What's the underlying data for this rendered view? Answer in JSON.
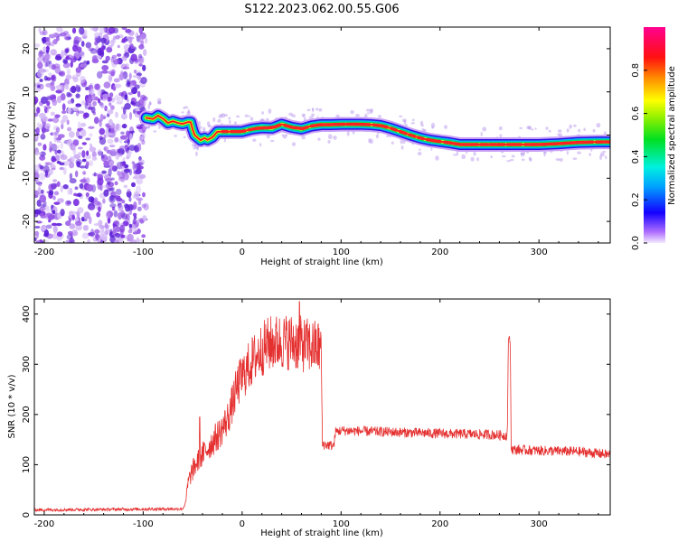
{
  "title": "S122.2023.062.00.55.G06",
  "colors": {
    "snr_line": "#e53030",
    "frame": "#000000",
    "dot_purple": "#7a2de0"
  },
  "chart_data": [
    {
      "type": "heatmap",
      "name": "spectrogram",
      "xlabel": "Height of straight line (km)",
      "ylabel": "Frequency (Hz)",
      "xlim": [
        -210,
        372
      ],
      "ylim": [
        -25,
        25
      ],
      "x_ticks": [
        -200,
        -100,
        0,
        100,
        200,
        300
      ],
      "x_tick_labels": [
        "-200",
        "-100",
        "0",
        "100",
        "200",
        "300"
      ],
      "y_ticks": [
        -20,
        -10,
        0,
        10,
        20
      ],
      "y_tick_labels": [
        "-20",
        "-10",
        "0",
        "10",
        "20"
      ],
      "noise_region_x": [
        -210,
        -97
      ],
      "ridge": [
        [
          -97,
          4
        ],
        [
          -90,
          3.7
        ],
        [
          -85,
          4.5
        ],
        [
          -80,
          3.8
        ],
        [
          -75,
          2.8
        ],
        [
          -70,
          3.2
        ],
        [
          -65,
          2.8
        ],
        [
          -60,
          2.6
        ],
        [
          -55,
          3.0
        ],
        [
          -52,
          3.0
        ],
        [
          -50,
          1.3
        ],
        [
          -48,
          0
        ],
        [
          -45,
          -0.6
        ],
        [
          -42,
          -1.2
        ],
        [
          -38,
          -0.7
        ],
        [
          -35,
          -1.1
        ],
        [
          -30,
          -0.5
        ],
        [
          -25,
          0.8
        ],
        [
          -15,
          0.8
        ],
        [
          0,
          0.8
        ],
        [
          10,
          1.4
        ],
        [
          20,
          1.7
        ],
        [
          30,
          1.6
        ],
        [
          40,
          2.5
        ],
        [
          50,
          1.8
        ],
        [
          60,
          1.4
        ],
        [
          70,
          2.1
        ],
        [
          80,
          2.4
        ],
        [
          90,
          2.4
        ],
        [
          100,
          2.5
        ],
        [
          110,
          2.5
        ],
        [
          120,
          2.5
        ],
        [
          130,
          2.4
        ],
        [
          140,
          2.2
        ],
        [
          150,
          1.6
        ],
        [
          160,
          0.8
        ],
        [
          170,
          0
        ],
        [
          180,
          -0.7
        ],
        [
          190,
          -1.2
        ],
        [
          200,
          -1.5
        ],
        [
          210,
          -1.8
        ],
        [
          220,
          -2.2
        ],
        [
          240,
          -2.2
        ],
        [
          260,
          -2.2
        ],
        [
          280,
          -2.2
        ],
        [
          300,
          -2.2
        ],
        [
          320,
          -2.0
        ],
        [
          340,
          -1.7
        ],
        [
          360,
          -1.6
        ],
        [
          372,
          -1.6
        ]
      ]
    },
    {
      "type": "line",
      "name": "snr",
      "xlabel": "Height of straight line (km)",
      "ylabel": "SNR (10 * v/v)",
      "xlim": [
        -210,
        372
      ],
      "ylim": [
        0,
        430
      ],
      "x_ticks": [
        -200,
        -100,
        0,
        100,
        200,
        300
      ],
      "x_tick_labels": [
        "-200",
        "-100",
        "0",
        "100",
        "200",
        "300"
      ],
      "y_ticks": [
        0,
        100,
        200,
        300,
        400
      ],
      "y_tick_labels": [
        "0",
        "100",
        "200",
        "300",
        "400"
      ],
      "envelope": [
        [
          -210,
          10
        ],
        [
          -60,
          12
        ],
        [
          -57,
          25
        ],
        [
          -55,
          60
        ],
        [
          -52,
          80
        ],
        [
          -47,
          100
        ],
        [
          -40,
          120
        ],
        [
          -30,
          145
        ],
        [
          -22,
          165
        ],
        [
          -15,
          190
        ],
        [
          -10,
          220
        ],
        [
          -5,
          255
        ],
        [
          0,
          275
        ],
        [
          5,
          290
        ],
        [
          10,
          305
        ],
        [
          15,
          318
        ],
        [
          20,
          330
        ],
        [
          25,
          338
        ],
        [
          30,
          342
        ],
        [
          40,
          345
        ],
        [
          50,
          345
        ],
        [
          60,
          340
        ],
        [
          70,
          335
        ],
        [
          80,
          333
        ],
        [
          81,
          140
        ],
        [
          93,
          138
        ],
        [
          94,
          165
        ],
        [
          100,
          168
        ],
        [
          150,
          165
        ],
        [
          200,
          162
        ],
        [
          250,
          160
        ],
        [
          268,
          158
        ],
        [
          269,
          340
        ],
        [
          270,
          352
        ],
        [
          271,
          345
        ],
        [
          272,
          130
        ],
        [
          300,
          128
        ],
        [
          340,
          126
        ],
        [
          372,
          120
        ]
      ],
      "peaks": [
        [
          58,
          425
        ],
        [
          -43,
          195
        ],
        [
          270,
          355
        ]
      ]
    }
  ],
  "colorbar": {
    "label": "Normalized spectral amplitude",
    "range": [
      0,
      1
    ],
    "ticks": [
      0.0,
      0.2,
      0.4,
      0.6,
      0.8
    ],
    "tick_labels": [
      "0.0",
      "0.2",
      "0.4",
      "0.6",
      "0.8"
    ]
  }
}
